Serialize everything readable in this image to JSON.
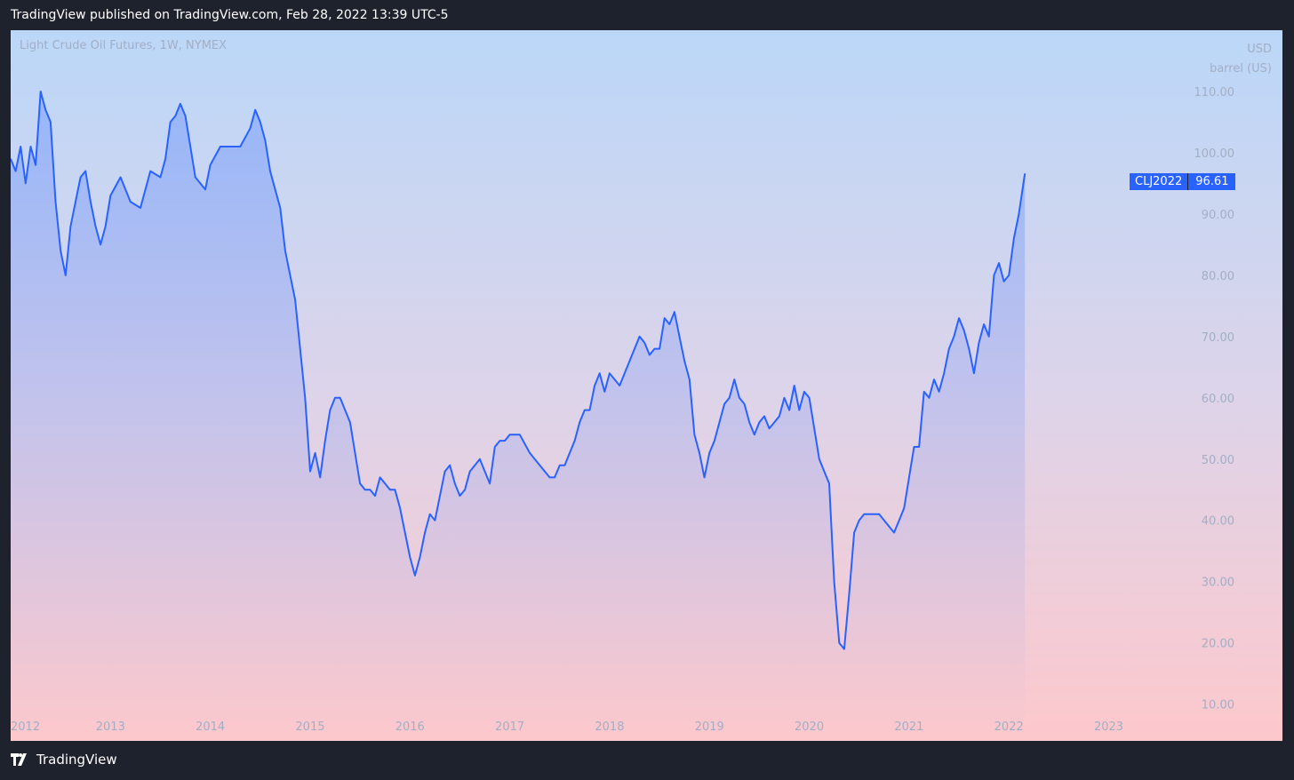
{
  "header": {
    "published": "TradingView published on TradingView.com, Feb 28, 2022 13:39 UTC-5"
  },
  "footer": {
    "brand": "TradingView"
  },
  "colors": {
    "line": "#2962ff",
    "axis_text": "#a3aec4",
    "badge": "#2962ff"
  },
  "chart_data": {
    "type": "area",
    "title": "Light Crude Oil Futures, 1W, NYMEX",
    "currency": "USD",
    "unit": "barrel (US)",
    "symbol": "CLJ2022",
    "last_value": "96.61",
    "y_ticks": [
      "110.00",
      "100.00",
      "90.00",
      "80.00",
      "70.00",
      "60.00",
      "50.00",
      "40.00",
      "30.00",
      "20.00",
      "10.00"
    ],
    "x_ticks": [
      "2012",
      "2013",
      "2014",
      "2015",
      "2016",
      "2017",
      "2018",
      "2019",
      "2020",
      "2021",
      "2022",
      "2023"
    ],
    "ylim": [
      4,
      120
    ],
    "xlim": [
      2012.0,
      2023.85
    ],
    "grid": false,
    "series": [
      {
        "x": [
          2012.0,
          2012.05,
          2012.1,
          2012.15,
          2012.2,
          2012.25,
          2012.3,
          2012.35,
          2012.4,
          2012.45,
          2012.5,
          2012.55,
          2012.6,
          2012.65,
          2012.7,
          2012.75,
          2012.8,
          2012.85,
          2012.9,
          2012.95,
          2013.0,
          2013.1,
          2013.2,
          2013.3,
          2013.4,
          2013.5,
          2013.55,
          2013.6,
          2013.65,
          2013.7,
          2013.75,
          2013.8,
          2013.85,
          2013.9,
          2013.95,
          2014.0,
          2014.1,
          2014.2,
          2014.3,
          2014.4,
          2014.45,
          2014.5,
          2014.55,
          2014.6,
          2014.65,
          2014.7,
          2014.75,
          2014.8,
          2014.85,
          2014.9,
          2014.95,
          2015.0,
          2015.05,
          2015.1,
          2015.15,
          2015.2,
          2015.25,
          2015.3,
          2015.35,
          2015.4,
          2015.45,
          2015.5,
          2015.55,
          2015.6,
          2015.65,
          2015.7,
          2015.75,
          2015.8,
          2015.85,
          2015.9,
          2015.95,
          2016.0,
          2016.05,
          2016.1,
          2016.15,
          2016.2,
          2016.25,
          2016.3,
          2016.35,
          2016.4,
          2016.45,
          2016.5,
          2016.55,
          2016.6,
          2016.65,
          2016.7,
          2016.75,
          2016.8,
          2016.85,
          2016.9,
          2016.95,
          2017.0,
          2017.1,
          2017.2,
          2017.3,
          2017.4,
          2017.45,
          2017.5,
          2017.55,
          2017.6,
          2017.65,
          2017.7,
          2017.75,
          2017.8,
          2017.85,
          2017.9,
          2017.95,
          2018.0,
          2018.1,
          2018.2,
          2018.3,
          2018.35,
          2018.4,
          2018.45,
          2018.5,
          2018.55,
          2018.6,
          2018.65,
          2018.7,
          2018.75,
          2018.8,
          2018.85,
          2018.9,
          2018.95,
          2019.0,
          2019.05,
          2019.1,
          2019.15,
          2019.2,
          2019.25,
          2019.3,
          2019.35,
          2019.4,
          2019.45,
          2019.5,
          2019.55,
          2019.6,
          2019.65,
          2019.7,
          2019.75,
          2019.8,
          2019.85,
          2019.9,
          2019.95,
          2020.0,
          2020.05,
          2020.1,
          2020.15,
          2020.2,
          2020.25,
          2020.3,
          2020.35,
          2020.4,
          2020.45,
          2020.5,
          2020.55,
          2020.6,
          2020.65,
          2020.7,
          2020.75,
          2020.8,
          2020.85,
          2020.9,
          2020.95,
          2021.0,
          2021.05,
          2021.1,
          2021.15,
          2021.2,
          2021.25,
          2021.3,
          2021.35,
          2021.4,
          2021.45,
          2021.5,
          2021.55,
          2021.6,
          2021.65,
          2021.7,
          2021.75,
          2021.8,
          2021.85,
          2021.9,
          2021.95,
          2022.0,
          2022.05,
          2022.1,
          2022.16
        ],
        "y": [
          99,
          97,
          101,
          95,
          101,
          98,
          110,
          107,
          105,
          92,
          84,
          80,
          88,
          92,
          96,
          97,
          92,
          88,
          85,
          88,
          93,
          96,
          92,
          91,
          97,
          96,
          99,
          105,
          106,
          108,
          106,
          101,
          96,
          95,
          94,
          98,
          101,
          101,
          101,
          104,
          107,
          105,
          102,
          97,
          94,
          91,
          84,
          80,
          76,
          68,
          60,
          48,
          51,
          47,
          53,
          58,
          60,
          60,
          58,
          56,
          51,
          46,
          45,
          45,
          44,
          47,
          46,
          45,
          45,
          42,
          38,
          34,
          31,
          34,
          38,
          41,
          40,
          44,
          48,
          49,
          46,
          44,
          45,
          48,
          49,
          50,
          48,
          46,
          52,
          53,
          53,
          54,
          54,
          51,
          49,
          47,
          47,
          49,
          49,
          51,
          53,
          56,
          58,
          58,
          62,
          64,
          61,
          64,
          62,
          66,
          70,
          69,
          67,
          68,
          68,
          73,
          72,
          74,
          70,
          66,
          63,
          54,
          51,
          47,
          51,
          53,
          56,
          59,
          60,
          63,
          60,
          59,
          56,
          54,
          56,
          57,
          55,
          56,
          57,
          60,
          58,
          62,
          58,
          61,
          60,
          55,
          50,
          48,
          46,
          30,
          20,
          19,
          28,
          38,
          40,
          41,
          41,
          41,
          41,
          40,
          39,
          38,
          40,
          42,
          47,
          52,
          52,
          61,
          60,
          63,
          61,
          64,
          68,
          70,
          73,
          71,
          68,
          64,
          69,
          72,
          70,
          80,
          82,
          79,
          80,
          86,
          90,
          96.61
        ]
      }
    ]
  }
}
